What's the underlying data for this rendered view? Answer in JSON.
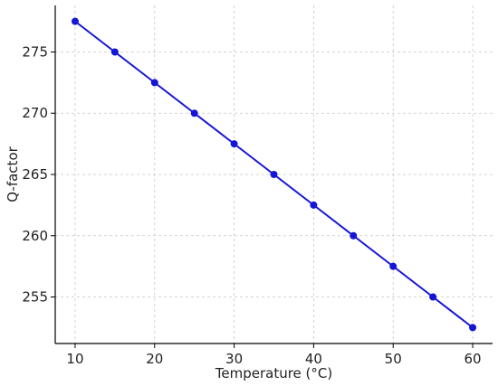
{
  "chart_data": {
    "type": "line",
    "title": "",
    "xlabel": "Temperature (°C)",
    "ylabel": "Q-factor",
    "x": [
      10,
      15,
      20,
      25,
      30,
      35,
      40,
      45,
      50,
      55,
      60
    ],
    "series": [
      {
        "values": [
          277.5,
          275,
          272.5,
          270,
          267.5,
          265,
          262.5,
          260,
          257.5,
          255,
          252.5
        ],
        "color": "#1515d6"
      }
    ],
    "xlim": [
      7.5,
      62.5
    ],
    "ylim": [
      251.2,
      278.8
    ],
    "xticks": [
      10,
      20,
      30,
      40,
      50,
      60
    ],
    "yticks": [
      255,
      260,
      265,
      270,
      275
    ],
    "xtick_labels": [
      "10",
      "20",
      "30",
      "40",
      "50",
      "60"
    ],
    "ytick_labels": [
      "255",
      "260",
      "265",
      "270",
      "275"
    ],
    "grid": true,
    "markers": "circle",
    "legend": "none"
  }
}
